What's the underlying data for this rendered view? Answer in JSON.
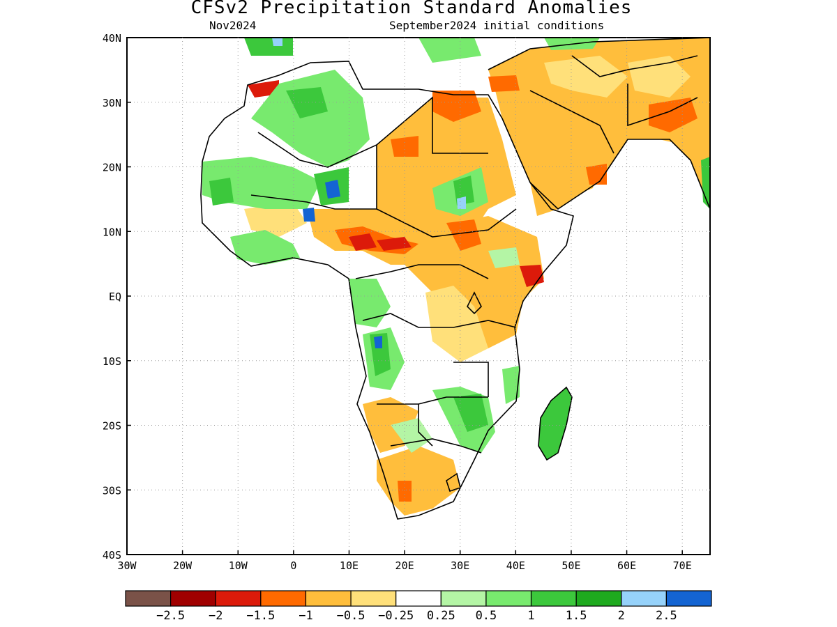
{
  "map": {
    "title": "CFSv2 Precipitation Standard Anomalies",
    "valid_month": "Nov2024",
    "initial_conditions": "September2024 initial conditions",
    "region": "Africa",
    "lon_range": [
      -30,
      75
    ],
    "lat_range": [
      -40,
      40
    ],
    "lon_ticks": [
      "30W",
      "20W",
      "10W",
      "0",
      "10E",
      "20E",
      "30E",
      "40E",
      "50E",
      "60E",
      "70E"
    ],
    "lat_ticks": [
      "40N",
      "30N",
      "20N",
      "10N",
      "EQ",
      "10S",
      "20S",
      "30S",
      "40S"
    ],
    "grid": "dotted"
  },
  "colorbar": {
    "colors": [
      "#7a5248",
      "#a00000",
      "#dc1a0a",
      "#ff6a00",
      "#ffbe3c",
      "#ffe07a",
      "#ffffff",
      "#b4f5a5",
      "#78ea6e",
      "#3cc83c",
      "#1eaa1e",
      "#96d2fa",
      "#1464d2"
    ],
    "labels": [
      "−2.5",
      "−2",
      "−1.5",
      "−1",
      "−0.5",
      "−0.25",
      "0.25",
      "0.5",
      "1",
      "1.5",
      "2",
      "2.5"
    ]
  }
}
